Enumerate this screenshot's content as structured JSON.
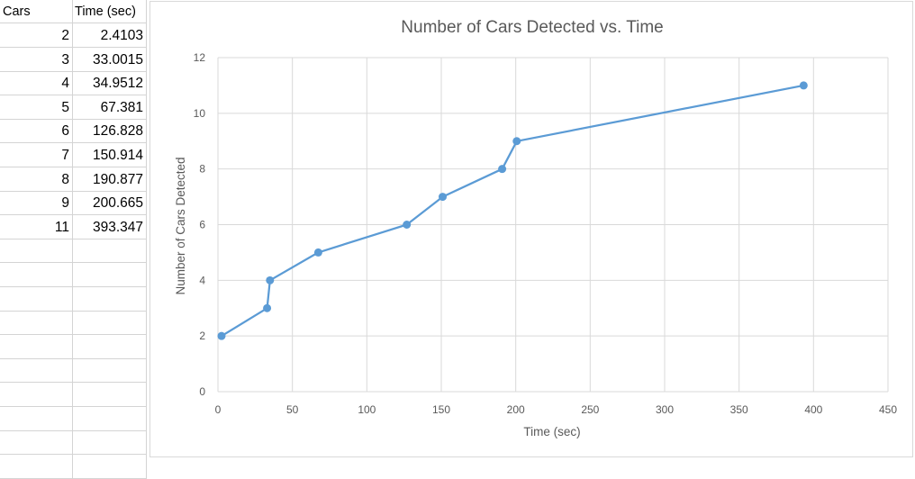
{
  "table": {
    "headers": [
      "Cars",
      "Time (sec)"
    ],
    "rows": [
      [
        "2",
        "2.4103"
      ],
      [
        "3",
        "33.0015"
      ],
      [
        "4",
        "34.9512"
      ],
      [
        "5",
        "67.381"
      ],
      [
        "6",
        "126.828"
      ],
      [
        "7",
        "150.914"
      ],
      [
        "8",
        "190.877"
      ],
      [
        "9",
        "200.665"
      ],
      [
        "11",
        "393.347"
      ]
    ]
  },
  "chart_data": {
    "type": "scatter",
    "title": "Number of Cars Detected vs. Time",
    "xlabel": "Time (sec)",
    "ylabel": "Number of Cars Detected",
    "xlim": [
      0,
      450
    ],
    "ylim": [
      0,
      12
    ],
    "xticks": [
      0,
      50,
      100,
      150,
      200,
      250,
      300,
      350,
      400,
      450
    ],
    "yticks": [
      0,
      2,
      4,
      6,
      8,
      10,
      12
    ],
    "grid": true,
    "legend": "none",
    "lines_connected": true,
    "series": [
      {
        "color": "#5b9bd5",
        "x": [
          2.4103,
          33.0015,
          34.9512,
          67.381,
          126.828,
          150.914,
          190.877,
          200.665,
          393.347
        ],
        "y": [
          2,
          3,
          4,
          5,
          6,
          7,
          8,
          9,
          11
        ]
      }
    ]
  }
}
